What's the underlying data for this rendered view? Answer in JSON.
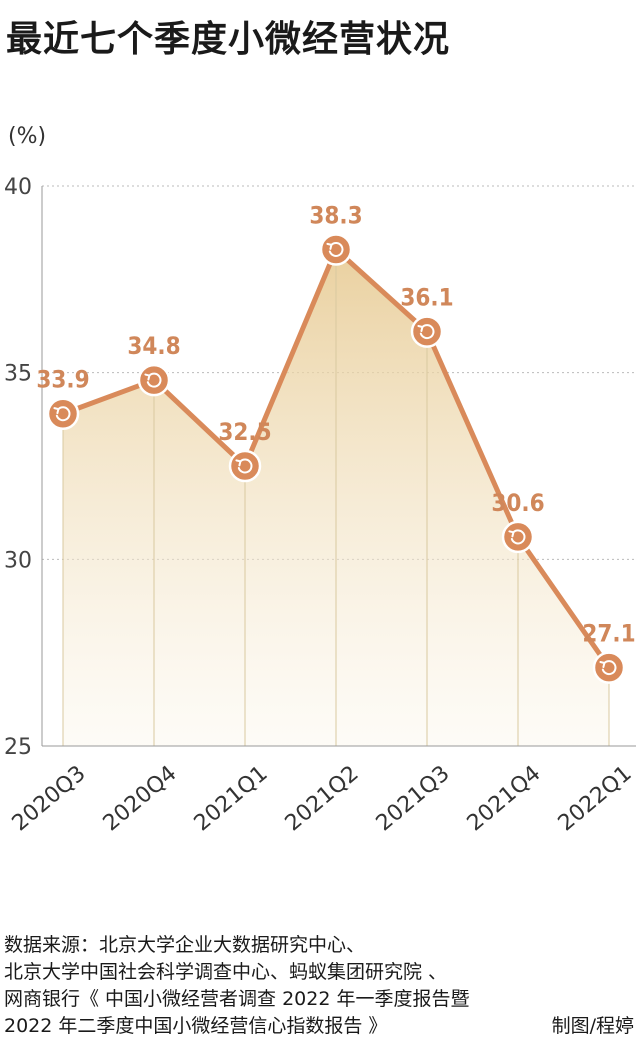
{
  "title": "最近七个季度小微经营状况",
  "unit_label": "(%)",
  "source": {
    "lines": [
      "数据来源：北京大学企业大数据研究中心、",
      "北京大学中国社会科学调查中心、蚂蚁集团研究院 、",
      "网商银行《 中国小微经营者调查 2022 年一季度报告暨",
      "2022 年二季度中国小微经营信心指数报告 》"
    ],
    "credit": "制图/程婷"
  },
  "chart_data": {
    "type": "area",
    "title": "最近七个季度小微经营状况",
    "ylabel": "(%)",
    "categories": [
      "2020Q3",
      "2020Q4",
      "2021Q1",
      "2021Q2",
      "2021Q3",
      "2021Q4",
      "2022Q1"
    ],
    "values": [
      33.9,
      34.8,
      32.5,
      38.3,
      36.1,
      30.6,
      27.1
    ],
    "value_labels": [
      "33.9",
      "34.8",
      "32.5",
      "38.3",
      "36.1",
      "30.6",
      "27.1"
    ],
    "ylim": [
      25,
      40
    ],
    "yticks": [
      25,
      30,
      35,
      40
    ],
    "grid": "horizontal-dotted",
    "colors": {
      "line": "#d98a5a",
      "marker": "#d98a5a",
      "label": "#d0875a",
      "fill_top": "#e6c88e",
      "fill_bottom": "#fbf6ea",
      "axis": "#999999",
      "grid": "#bbbbbb"
    }
  }
}
